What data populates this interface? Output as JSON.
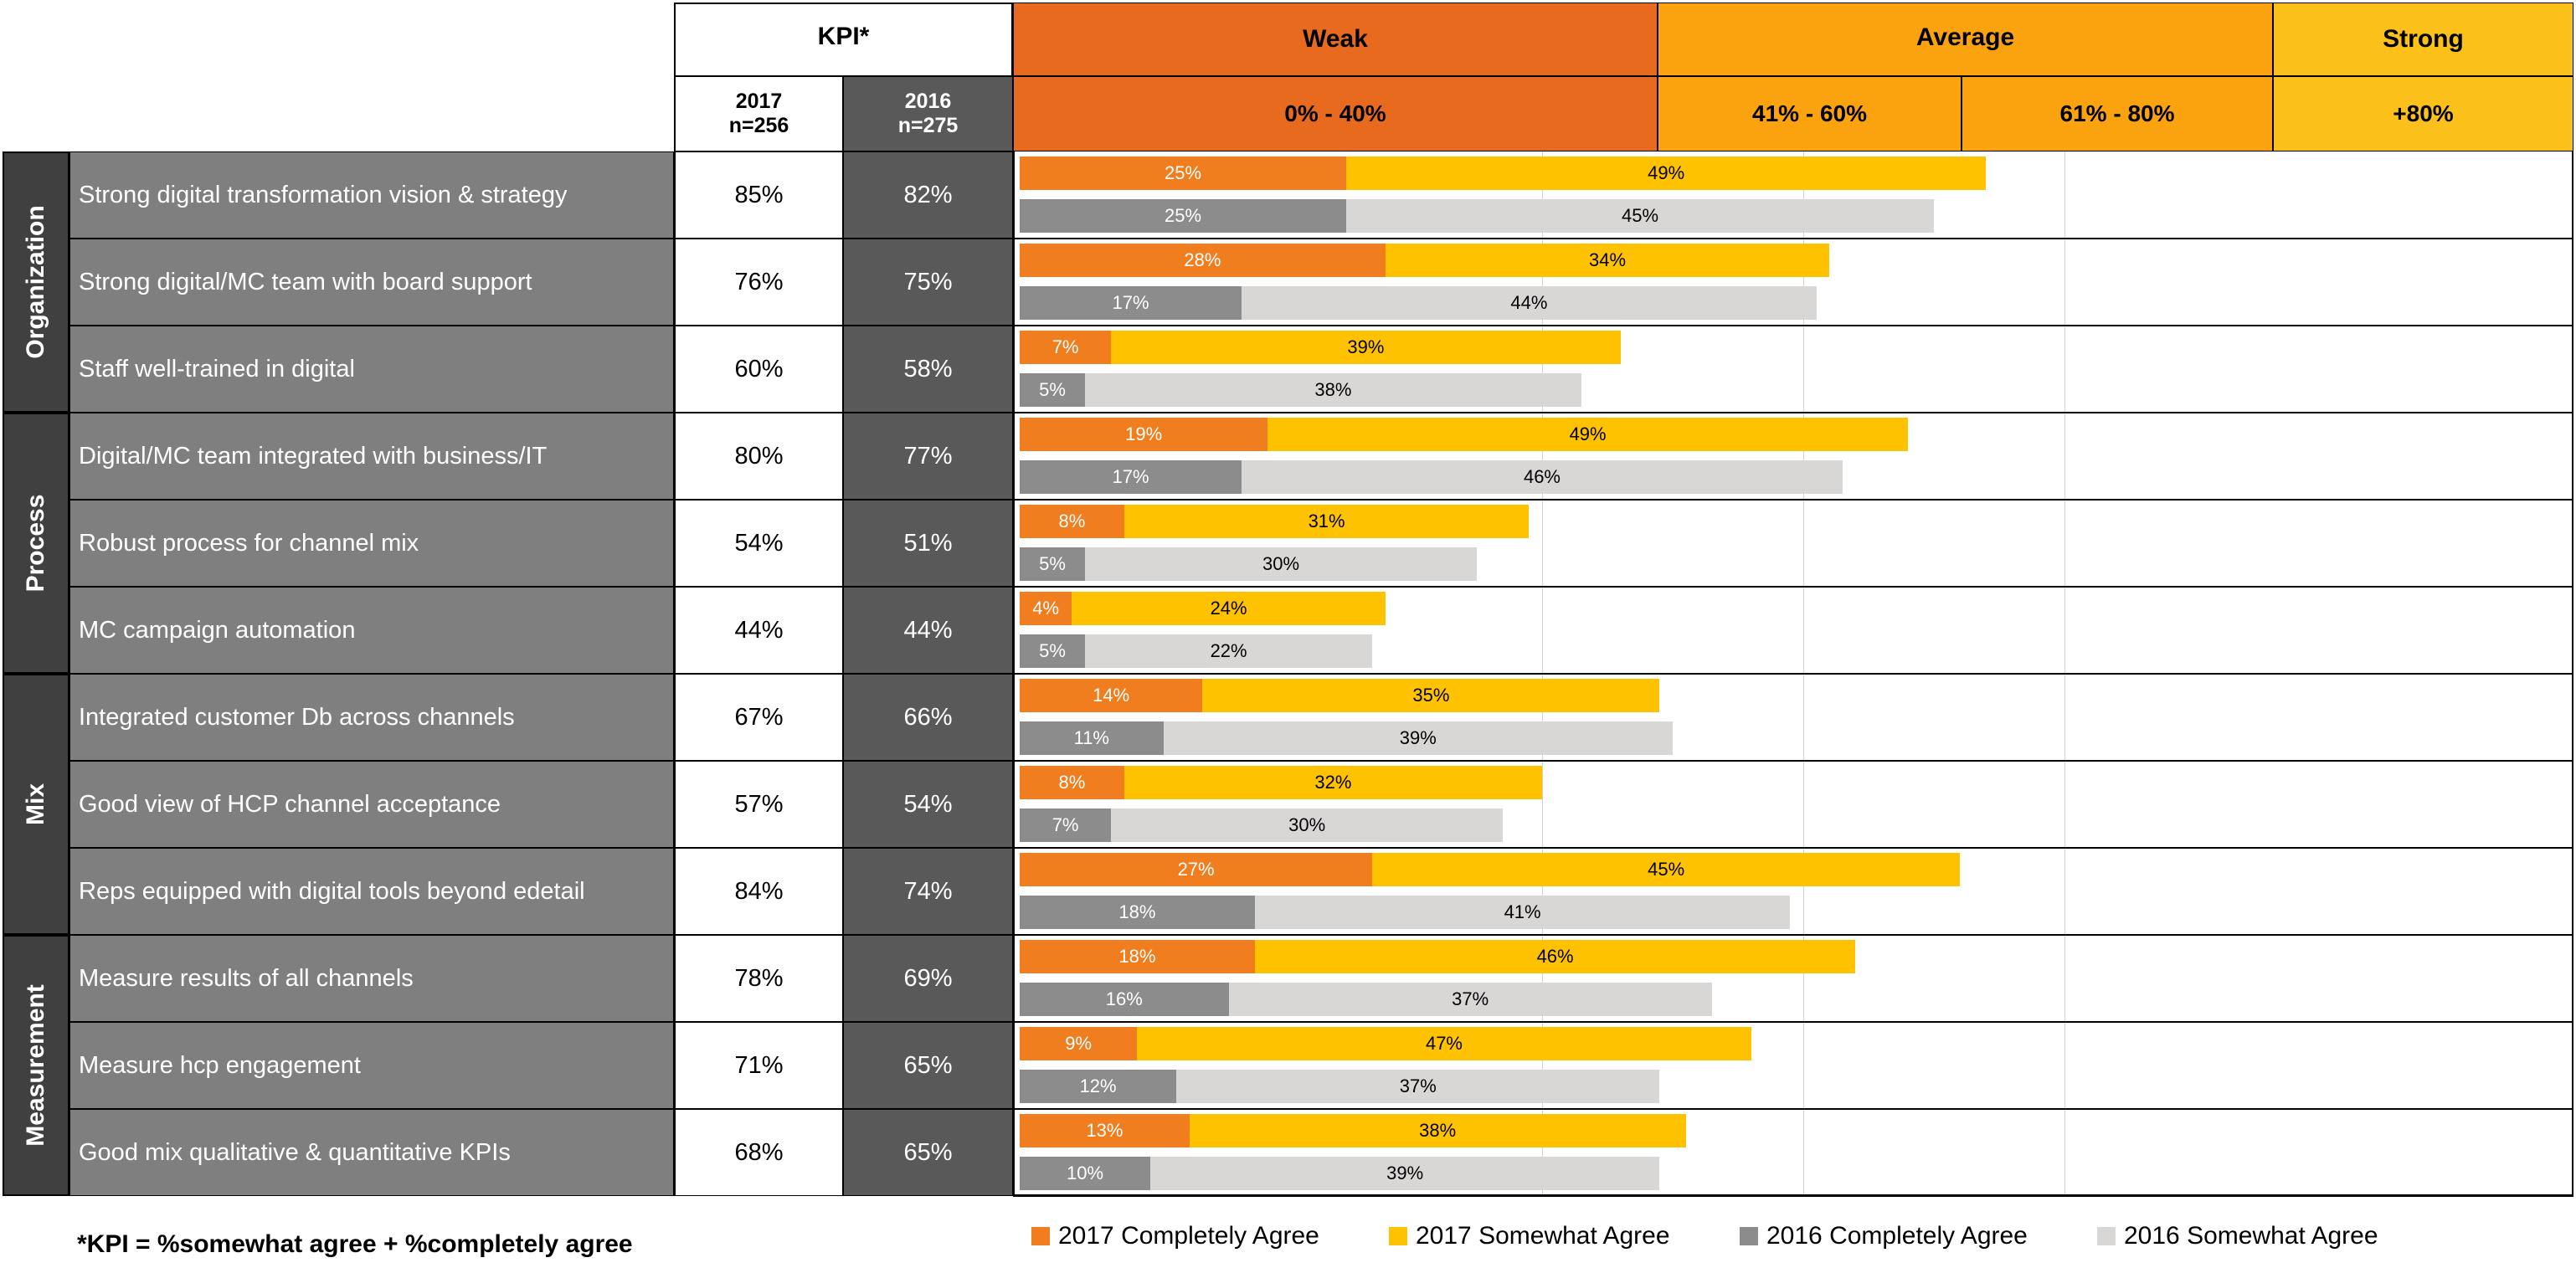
{
  "header": {
    "kpi_title": "KPI*",
    "col2017_year": "2017",
    "col2017_n": "n=256",
    "col2016_year": "2016",
    "col2016_n": "n=275",
    "bands": [
      {
        "name": "Weak",
        "range": "0% - 40%",
        "color": "#E86A1F"
      },
      {
        "name": "Average",
        "range": "41% - 60%",
        "color": "#FBA20F"
      },
      {
        "name": "",
        "range": "61% - 80%",
        "color": "#FBA20F"
      },
      {
        "name": "Strong",
        "range": "+80%",
        "color": "#FBC11A"
      }
    ]
  },
  "footnote": "*KPI = %somewhat agree + %completely agree",
  "colors": {
    "c2017_complete": "#F07D1E",
    "c2017_somewhat": "#FFC200",
    "c2016_complete": "#8C8C8C",
    "c2016_somewhat": "#D9D6D6"
  },
  "chart_data": {
    "type": "bar",
    "orientation": "horizontal",
    "stacked": true,
    "xlim": [
      0,
      100
    ],
    "bands": [
      "0% - 40%",
      "41% - 60%",
      "61% - 80%",
      "+80%"
    ],
    "legend": [
      "2017 Completely Agree",
      "2017 Somewhat Agree",
      "2016 Completely Agree",
      "2016 Somewhat Agree"
    ],
    "groups": [
      {
        "name": "Organization",
        "rows": [
          {
            "label": "Strong digital transformation vision & strategy",
            "kpi2017": "85%",
            "kpi2016": "82%",
            "c2017": 25,
            "s2017": 49,
            "c2016": 25,
            "s2016": 45
          },
          {
            "label": "Strong digital/MC team with board support",
            "kpi2017": "76%",
            "kpi2016": "75%",
            "c2017": 28,
            "s2017": 34,
            "c2016": 17,
            "s2016": 44
          },
          {
            "label": "Staff well-trained in digital",
            "kpi2017": "60%",
            "kpi2016": "58%",
            "c2017": 7,
            "s2017": 39,
            "c2016": 5,
            "s2016": 38
          }
        ]
      },
      {
        "name": "Process",
        "rows": [
          {
            "label": "Digital/MC team integrated with business/IT",
            "kpi2017": "80%",
            "kpi2016": "77%",
            "c2017": 19,
            "s2017": 49,
            "c2016": 17,
            "s2016": 46
          },
          {
            "label": "Robust process for channel mix",
            "kpi2017": "54%",
            "kpi2016": "51%",
            "c2017": 8,
            "s2017": 31,
            "c2016": 5,
            "s2016": 30
          },
          {
            "label": "MC campaign automation",
            "kpi2017": "44%",
            "kpi2016": "44%",
            "c2017": 4,
            "s2017": 24,
            "c2016": 5,
            "s2016": 22
          }
        ]
      },
      {
        "name": "Mix",
        "rows": [
          {
            "label": "Integrated customer Db across channels",
            "kpi2017": "67%",
            "kpi2016": "66%",
            "c2017": 14,
            "s2017": 35,
            "c2016": 11,
            "s2016": 39
          },
          {
            "label": "Good view of HCP channel acceptance",
            "kpi2017": "57%",
            "kpi2016": "54%",
            "c2017": 8,
            "s2017": 32,
            "c2016": 7,
            "s2016": 30
          },
          {
            "label": "Reps equipped with digital tools beyond edetail",
            "kpi2017": "84%",
            "kpi2016": "74%",
            "c2017": 27,
            "s2017": 45,
            "c2016": 18,
            "s2016": 41
          }
        ]
      },
      {
        "name": "Measurement",
        "rows": [
          {
            "label": "Measure results of all channels",
            "kpi2017": "78%",
            "kpi2016": "69%",
            "c2017": 18,
            "s2017": 46,
            "c2016": 16,
            "s2016": 37
          },
          {
            "label": "Measure hcp engagement",
            "kpi2017": "71%",
            "kpi2016": "65%",
            "c2017": 9,
            "s2017": 47,
            "c2016": 12,
            "s2016": 37
          },
          {
            "label": "Good mix qualitative & quantitative KPIs",
            "kpi2017": "68%",
            "kpi2016": "65%",
            "c2017": 13,
            "s2017": 38,
            "c2016": 10,
            "s2016": 39
          }
        ]
      }
    ]
  }
}
